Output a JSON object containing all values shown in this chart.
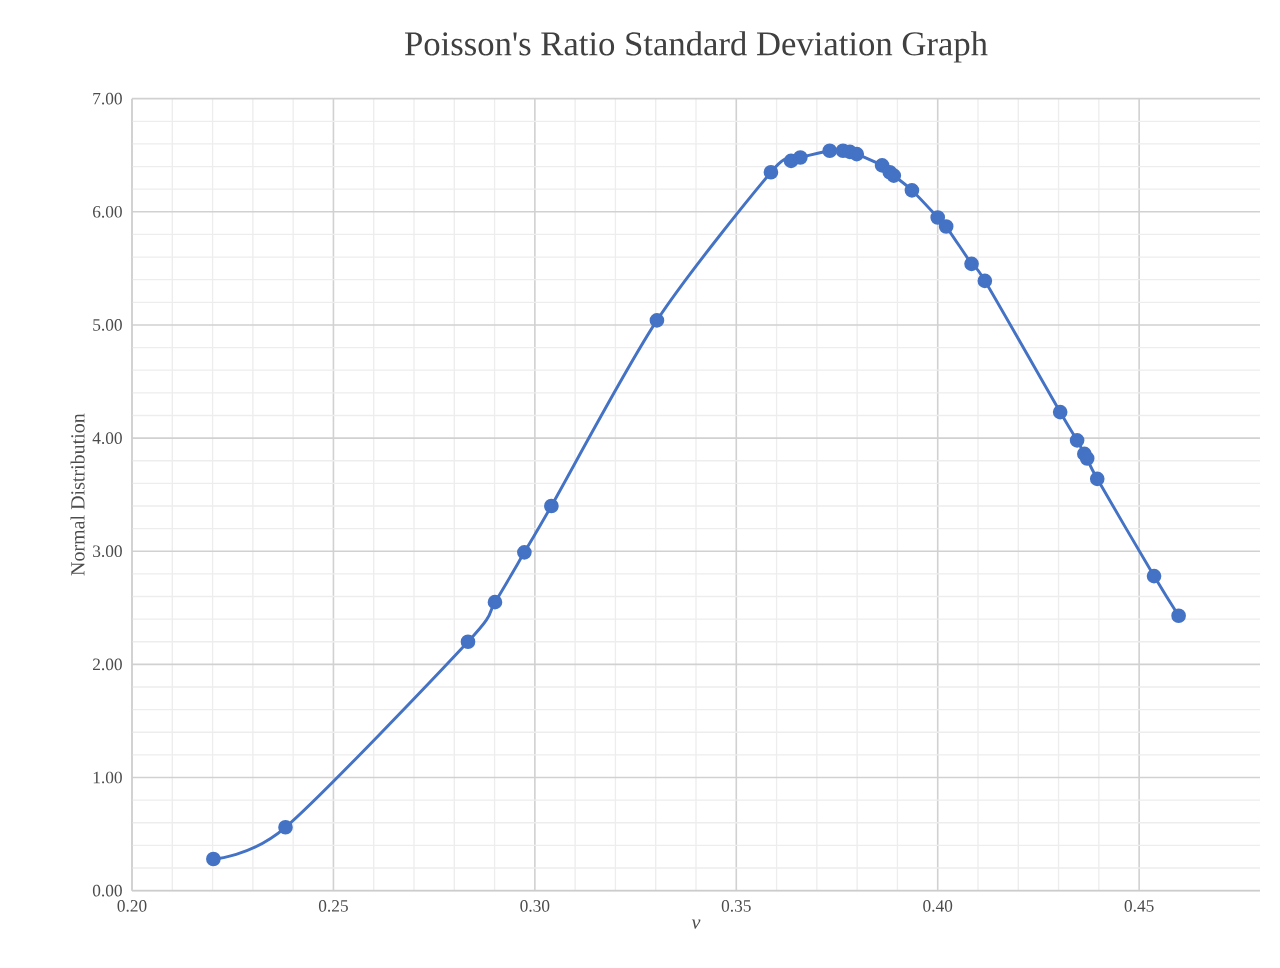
{
  "chart_data": {
    "type": "line",
    "title": "Poisson's Ratio Standard Deviation Graph",
    "xlabel": "v",
    "ylabel": "Normal Distribution",
    "series": [
      {
        "color": "#4472c4",
        "x": [
          0.2202,
          0.2381,
          0.2834,
          0.2901,
          0.2974,
          0.3041,
          0.3303,
          0.3586,
          0.3636,
          0.3659,
          0.3732,
          0.3765,
          0.3782,
          0.3799,
          0.3862,
          0.3881,
          0.3891,
          0.3936,
          0.4,
          0.4021,
          0.4084,
          0.4117,
          0.4304,
          0.4346,
          0.4364,
          0.4371,
          0.4396,
          0.4537,
          0.4598
        ],
        "values": [
          0.28,
          0.56,
          2.2,
          2.55,
          2.99,
          3.4,
          5.04,
          6.35,
          6.45,
          6.48,
          6.54,
          6.54,
          6.53,
          6.51,
          6.41,
          6.35,
          6.32,
          6.19,
          5.95,
          5.87,
          5.54,
          5.39,
          4.23,
          3.98,
          3.86,
          3.82,
          3.64,
          2.78,
          2.43
        ]
      }
    ],
    "xlim": [
      0.2,
      0.48
    ],
    "xticks": [
      {
        "value": 0.2,
        "label": "0.20"
      },
      {
        "value": 0.25,
        "label": "0.25"
      },
      {
        "value": 0.3,
        "label": "0.30"
      },
      {
        "value": 0.35,
        "label": "0.35"
      },
      {
        "value": 0.4,
        "label": "0.40"
      },
      {
        "value": 0.45,
        "label": "0.45"
      }
    ],
    "ylim": [
      0,
      7
    ],
    "yticks": [
      {
        "value": 0,
        "label": "0.00"
      },
      {
        "value": 1,
        "label": "1.00"
      },
      {
        "value": 2,
        "label": "2.00"
      },
      {
        "value": 3,
        "label": "3.00"
      },
      {
        "value": 4,
        "label": "4.00"
      },
      {
        "value": 5,
        "label": "5.00"
      },
      {
        "value": 6,
        "label": "6.00"
      },
      {
        "value": 7,
        "label": "7.00"
      }
    ],
    "grid": true,
    "marker": "circle",
    "line_style": "solid"
  }
}
